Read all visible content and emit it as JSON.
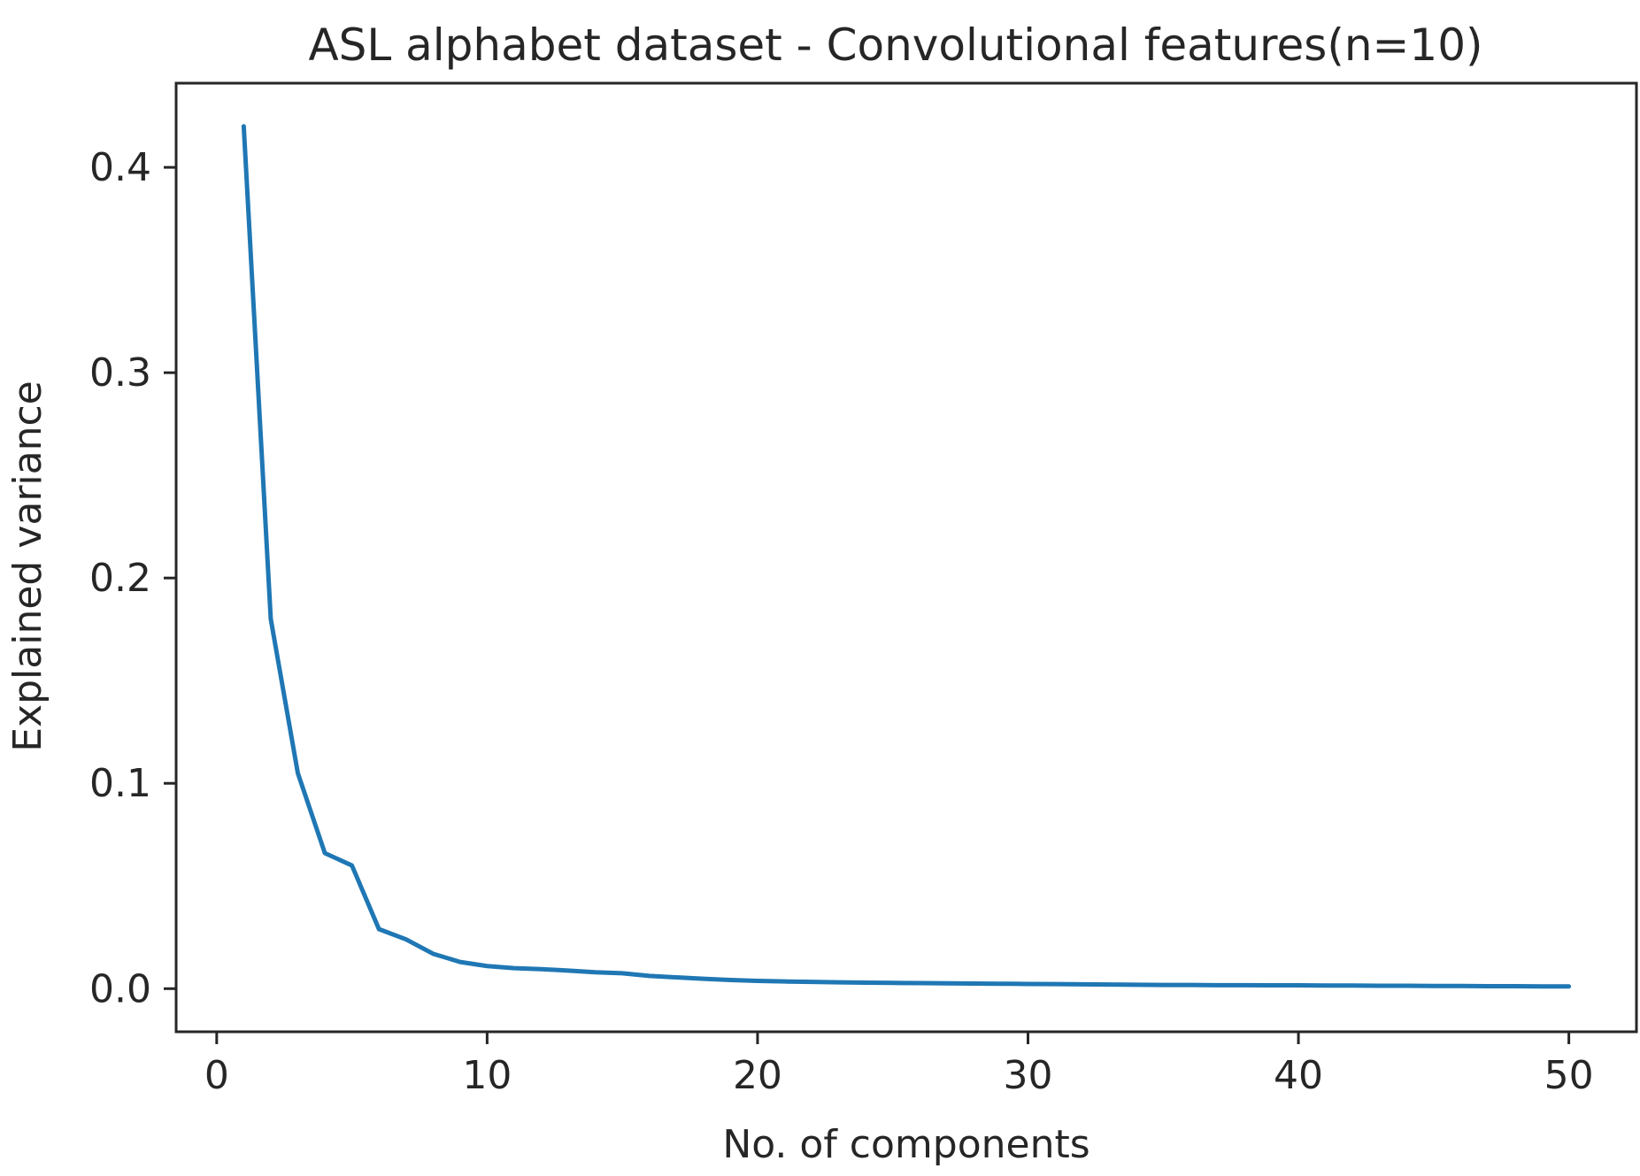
{
  "chart_data": {
    "type": "line",
    "title": "ASL alphabet dataset - Convolutional features(n=10)",
    "xlabel": "No. of components",
    "ylabel": "Explained variance",
    "xlim": [
      -1.5,
      52.5
    ],
    "ylim": [
      -0.021,
      0.441
    ],
    "xticks": [
      0,
      10,
      20,
      30,
      40,
      50
    ],
    "xtick_labels": [
      "0",
      "10",
      "20",
      "30",
      "40",
      "50"
    ],
    "yticks": [
      0.0,
      0.1,
      0.2,
      0.3,
      0.4
    ],
    "ytick_labels": [
      "0.0",
      "0.1",
      "0.2",
      "0.3",
      "0.4"
    ],
    "grid": false,
    "legend": "none",
    "series": [
      {
        "color": "#1f77b4",
        "x": [
          1,
          2,
          3,
          4,
          5,
          6,
          7,
          8,
          9,
          10,
          11,
          12,
          13,
          14,
          15,
          16,
          17,
          18,
          19,
          20,
          21,
          22,
          23,
          24,
          25,
          26,
          27,
          28,
          29,
          30,
          31,
          32,
          33,
          34,
          35,
          36,
          37,
          38,
          39,
          40,
          41,
          42,
          43,
          44,
          45,
          46,
          47,
          48,
          49,
          50
        ],
        "values": [
          0.42,
          0.18,
          0.105,
          0.066,
          0.06,
          0.029,
          0.024,
          0.017,
          0.013,
          0.011,
          0.01,
          0.0095,
          0.0088,
          0.008,
          0.0075,
          0.0062,
          0.0055,
          0.0048,
          0.0042,
          0.0038,
          0.0035,
          0.0033,
          0.0031,
          0.0029,
          0.0028,
          0.0027,
          0.0026,
          0.0025,
          0.0024,
          0.0023,
          0.0022,
          0.0021,
          0.002,
          0.0019,
          0.0018,
          0.0018,
          0.0017,
          0.0017,
          0.0016,
          0.0016,
          0.0015,
          0.0015,
          0.0014,
          0.0014,
          0.0013,
          0.0013,
          0.0012,
          0.0012,
          0.0011,
          0.0011
        ]
      }
    ]
  }
}
